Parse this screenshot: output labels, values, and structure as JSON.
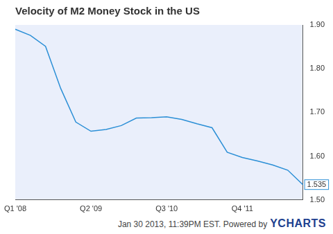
{
  "chart_data": {
    "type": "line",
    "title": "Velocity of M2 Money Stock in the US",
    "categories": [
      "Q1 '08",
      null,
      null,
      null,
      null,
      "Q2 '09",
      null,
      null,
      null,
      null,
      "Q3 '10",
      null,
      null,
      null,
      null,
      "Q4 '11",
      null,
      null,
      null,
      null
    ],
    "values": [
      1.89,
      1.876,
      1.851,
      1.755,
      1.678,
      1.657,
      1.661,
      1.67,
      1.687,
      1.688,
      1.69,
      1.684,
      1.674,
      1.665,
      1.609,
      1.597,
      1.589,
      1.58,
      1.568,
      1.535
    ],
    "value_labels": [
      null,
      null,
      null,
      null,
      null,
      null,
      null,
      null,
      null,
      null,
      null,
      null,
      null,
      null,
      null,
      null,
      null,
      null,
      null,
      "1.535"
    ],
    "color": "#2b8fd6",
    "ylim": [
      1.5,
      1.9
    ],
    "yticks": [
      {
        "value": 1.5,
        "label": "1.50"
      },
      {
        "value": 1.6,
        "label": "1.60"
      },
      {
        "value": 1.7,
        "label": "1.70"
      },
      {
        "value": 1.8,
        "label": "1.80"
      },
      {
        "value": 1.9,
        "label": "1.90"
      }
    ],
    "grid": false,
    "annotations": [
      "Jan 30 2013, 11:39PM EST. Powered by",
      "YCHARTS"
    ]
  }
}
